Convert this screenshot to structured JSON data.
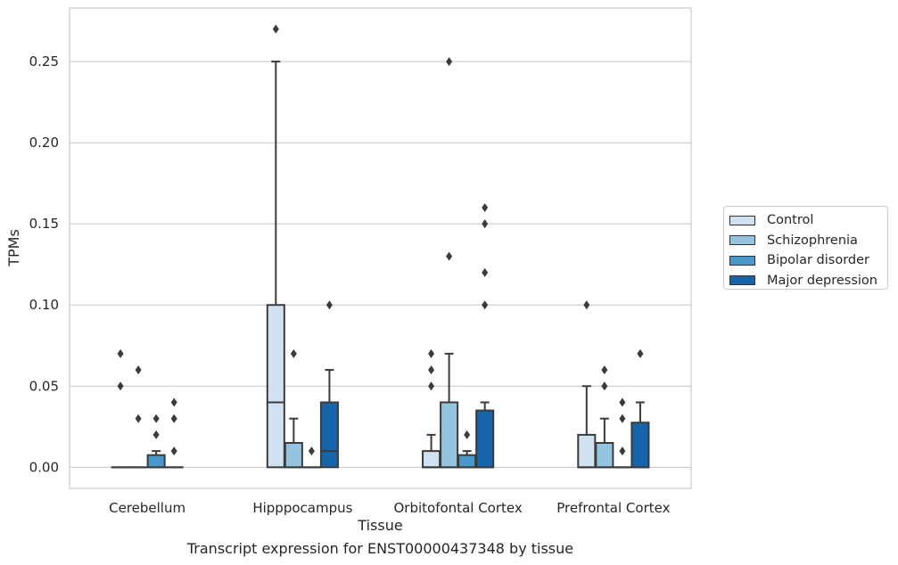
{
  "chart_data": {
    "type": "box",
    "caption": "Transcript expression for ENST00000437348 by tissue",
    "xlabel": "Tissue",
    "ylabel": "TPMs",
    "ylim": [
      -0.013,
      0.283
    ],
    "yticks": [
      "0.00",
      "0.05",
      "0.10",
      "0.15",
      "0.20",
      "0.25"
    ],
    "grid": true,
    "legend_position": "right",
    "categories": [
      "Cerebellum",
      "Hipppocampus",
      "Orbitofontal Cortex",
      "Prefrontal Cortex"
    ],
    "series": [
      {
        "name": "Control",
        "color": "#d0e1f2",
        "boxes": [
          {
            "q1": 0,
            "median": 0,
            "q3": 0,
            "whisker_low": 0,
            "whisker_high": 0,
            "outliers": [
              0.05,
              0.07
            ]
          },
          {
            "q1": 0,
            "median": 0.04,
            "q3": 0.1,
            "whisker_low": 0,
            "whisker_high": 0.25,
            "outliers": [
              0.27
            ]
          },
          {
            "q1": 0,
            "median": 0,
            "q3": 0.01,
            "whisker_low": 0,
            "whisker_high": 0.02,
            "outliers": [
              0.05,
              0.06,
              0.07
            ]
          },
          {
            "q1": 0,
            "median": 0,
            "q3": 0.02,
            "whisker_low": 0,
            "whisker_high": 0.05,
            "outliers": [
              0.1
            ]
          }
        ]
      },
      {
        "name": "Schizophrenia",
        "color": "#94c4df",
        "boxes": [
          {
            "q1": 0,
            "median": 0,
            "q3": 0,
            "whisker_low": 0,
            "whisker_high": 0,
            "outliers": [
              0.03,
              0.06
            ]
          },
          {
            "q1": 0,
            "median": 0,
            "q3": 0.015,
            "whisker_low": 0,
            "whisker_high": 0.03,
            "outliers": [
              0.07
            ]
          },
          {
            "q1": 0,
            "median": 0,
            "q3": 0.04,
            "whisker_low": 0,
            "whisker_high": 0.07,
            "outliers": [
              0.13,
              0.25
            ]
          },
          {
            "q1": 0,
            "median": 0,
            "q3": 0.015,
            "whisker_low": 0,
            "whisker_high": 0.03,
            "outliers": [
              0.05,
              0.06
            ]
          }
        ]
      },
      {
        "name": "Bipolar disorder",
        "color": "#4a98c9",
        "boxes": [
          {
            "q1": 0,
            "median": 0,
            "q3": 0.0075,
            "whisker_low": 0,
            "whisker_high": 0.01,
            "outliers": [
              0.02,
              0.03
            ]
          },
          {
            "q1": 0,
            "median": 0,
            "q3": 0,
            "whisker_low": 0,
            "whisker_high": 0,
            "outliers": [
              0.01
            ]
          },
          {
            "q1": 0,
            "median": 0,
            "q3": 0.0075,
            "whisker_low": 0,
            "whisker_high": 0.01,
            "outliers": [
              0.02
            ]
          },
          {
            "q1": 0,
            "median": 0,
            "q3": 0,
            "whisker_low": 0,
            "whisker_high": 0,
            "outliers": [
              0.01,
              0.03,
              0.04
            ]
          }
        ]
      },
      {
        "name": "Major depression",
        "color": "#1764ab",
        "boxes": [
          {
            "q1": 0,
            "median": 0,
            "q3": 0,
            "whisker_low": 0,
            "whisker_high": 0,
            "outliers": [
              0.01,
              0.03,
              0.04
            ]
          },
          {
            "q1": 0,
            "median": 0.01,
            "q3": 0.04,
            "whisker_low": 0,
            "whisker_high": 0.06,
            "outliers": [
              0.1
            ]
          },
          {
            "q1": 0,
            "median": 0,
            "q3": 0.035,
            "whisker_low": 0,
            "whisker_high": 0.04,
            "outliers": [
              0.1,
              0.12,
              0.15,
              0.16
            ]
          },
          {
            "q1": 0,
            "median": 0,
            "q3": 0.0275,
            "whisker_low": 0,
            "whisker_high": 0.04,
            "outliers": [
              0.07
            ]
          }
        ]
      }
    ]
  }
}
